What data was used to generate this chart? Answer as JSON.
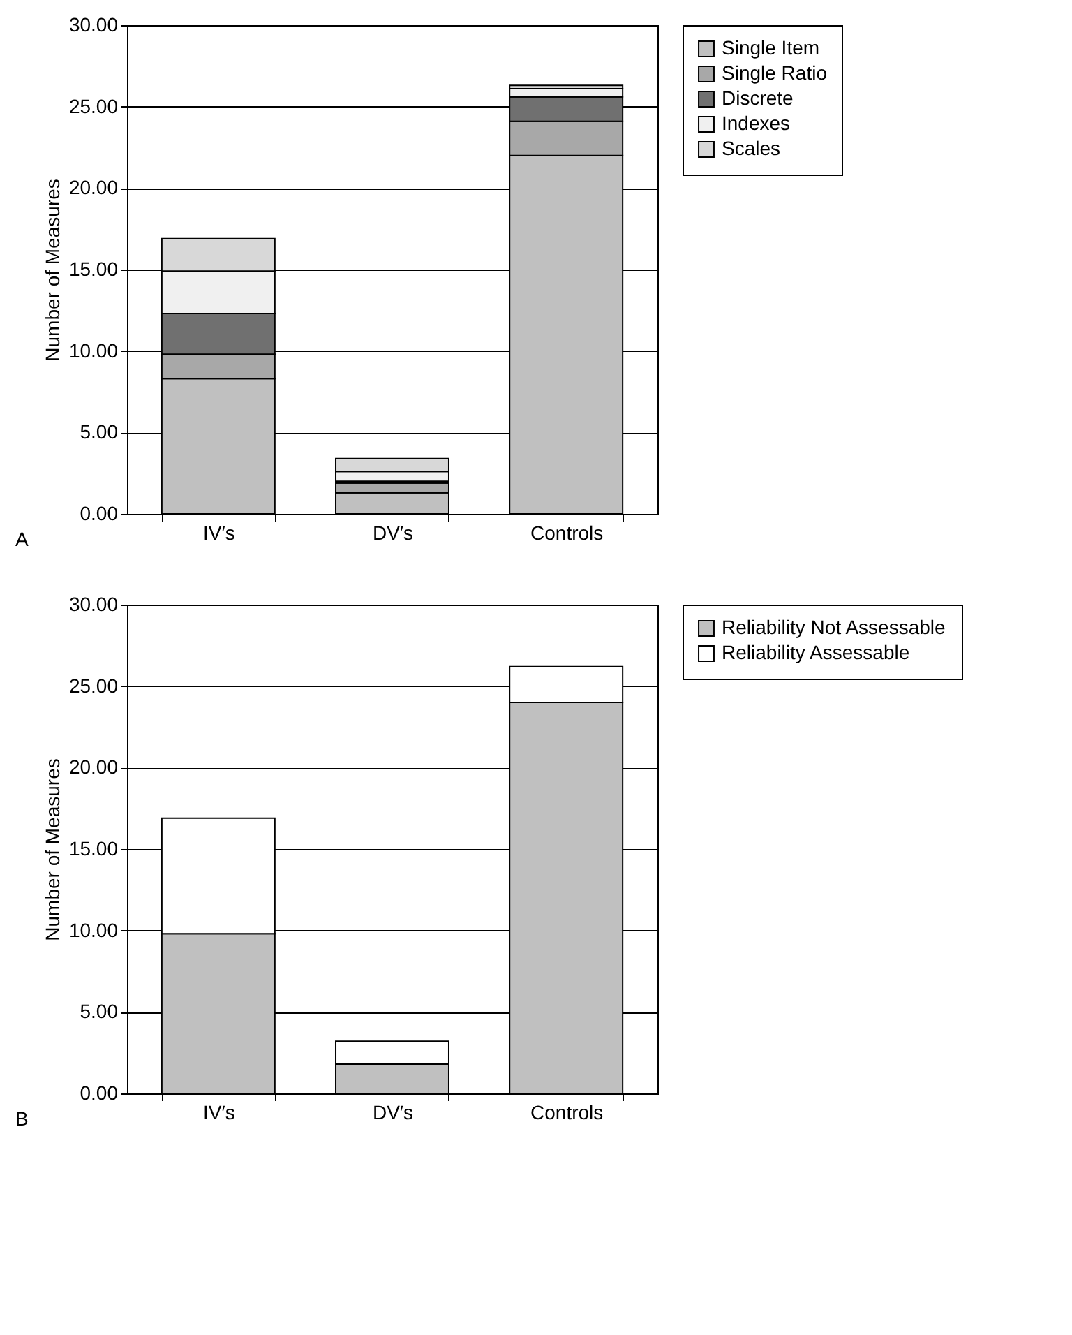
{
  "chart_data": [
    {
      "type": "bar",
      "stacked": true,
      "ylabel": "Number of Measures",
      "categories": [
        "IV′s",
        "DV′s",
        "Controls"
      ],
      "annotations": [
        "A"
      ],
      "ylim": [
        0,
        30
      ],
      "yticks": [
        {
          "value": 0,
          "label": "0.00"
        },
        {
          "value": 5,
          "label": "5.00"
        },
        {
          "value": 10,
          "label": "10.00"
        },
        {
          "value": 15,
          "label": "15.00"
        },
        {
          "value": 20,
          "label": "20.00"
        },
        {
          "value": 25,
          "label": "25.00"
        },
        {
          "value": 30,
          "label": "30.00"
        }
      ],
      "grid": "y",
      "legend": "right",
      "series": [
        {
          "name": "Single Item",
          "color": "#c0c0c0",
          "values": [
            8.3,
            1.3,
            22.0
          ]
        },
        {
          "name": "Single Ratio",
          "color": "#a8a8a8",
          "values": [
            1.5,
            0.6,
            2.1
          ]
        },
        {
          "name": "Discrete",
          "color": "#707070",
          "values": [
            2.5,
            0.1,
            1.5
          ]
        },
        {
          "name": "Indexes",
          "color": "#f0f0f0",
          "values": [
            2.6,
            0.6,
            0.5
          ]
        },
        {
          "name": "Scales",
          "color": "#d8d8d8",
          "values": [
            2.0,
            0.8,
            0.2
          ]
        }
      ]
    },
    {
      "type": "bar",
      "stacked": true,
      "ylabel": "Number of Measures",
      "categories": [
        "IV′s",
        "DV′s",
        "Controls"
      ],
      "annotations": [
        "B"
      ],
      "ylim": [
        0,
        30
      ],
      "yticks": [
        {
          "value": 0,
          "label": "0.00"
        },
        {
          "value": 5,
          "label": "5.00"
        },
        {
          "value": 10,
          "label": "10.00"
        },
        {
          "value": 15,
          "label": "15.00"
        },
        {
          "value": 20,
          "label": "20.00"
        },
        {
          "value": 25,
          "label": "25.00"
        },
        {
          "value": 30,
          "label": "30.00"
        }
      ],
      "grid": "y",
      "legend": "right",
      "series": [
        {
          "name": "Reliability Not Assessable",
          "color": "#c0c0c0",
          "values": [
            9.8,
            1.8,
            24.0
          ]
        },
        {
          "name": "Reliability Assessable",
          "color": "#ffffff",
          "values": [
            7.1,
            1.4,
            2.2
          ]
        }
      ]
    }
  ]
}
